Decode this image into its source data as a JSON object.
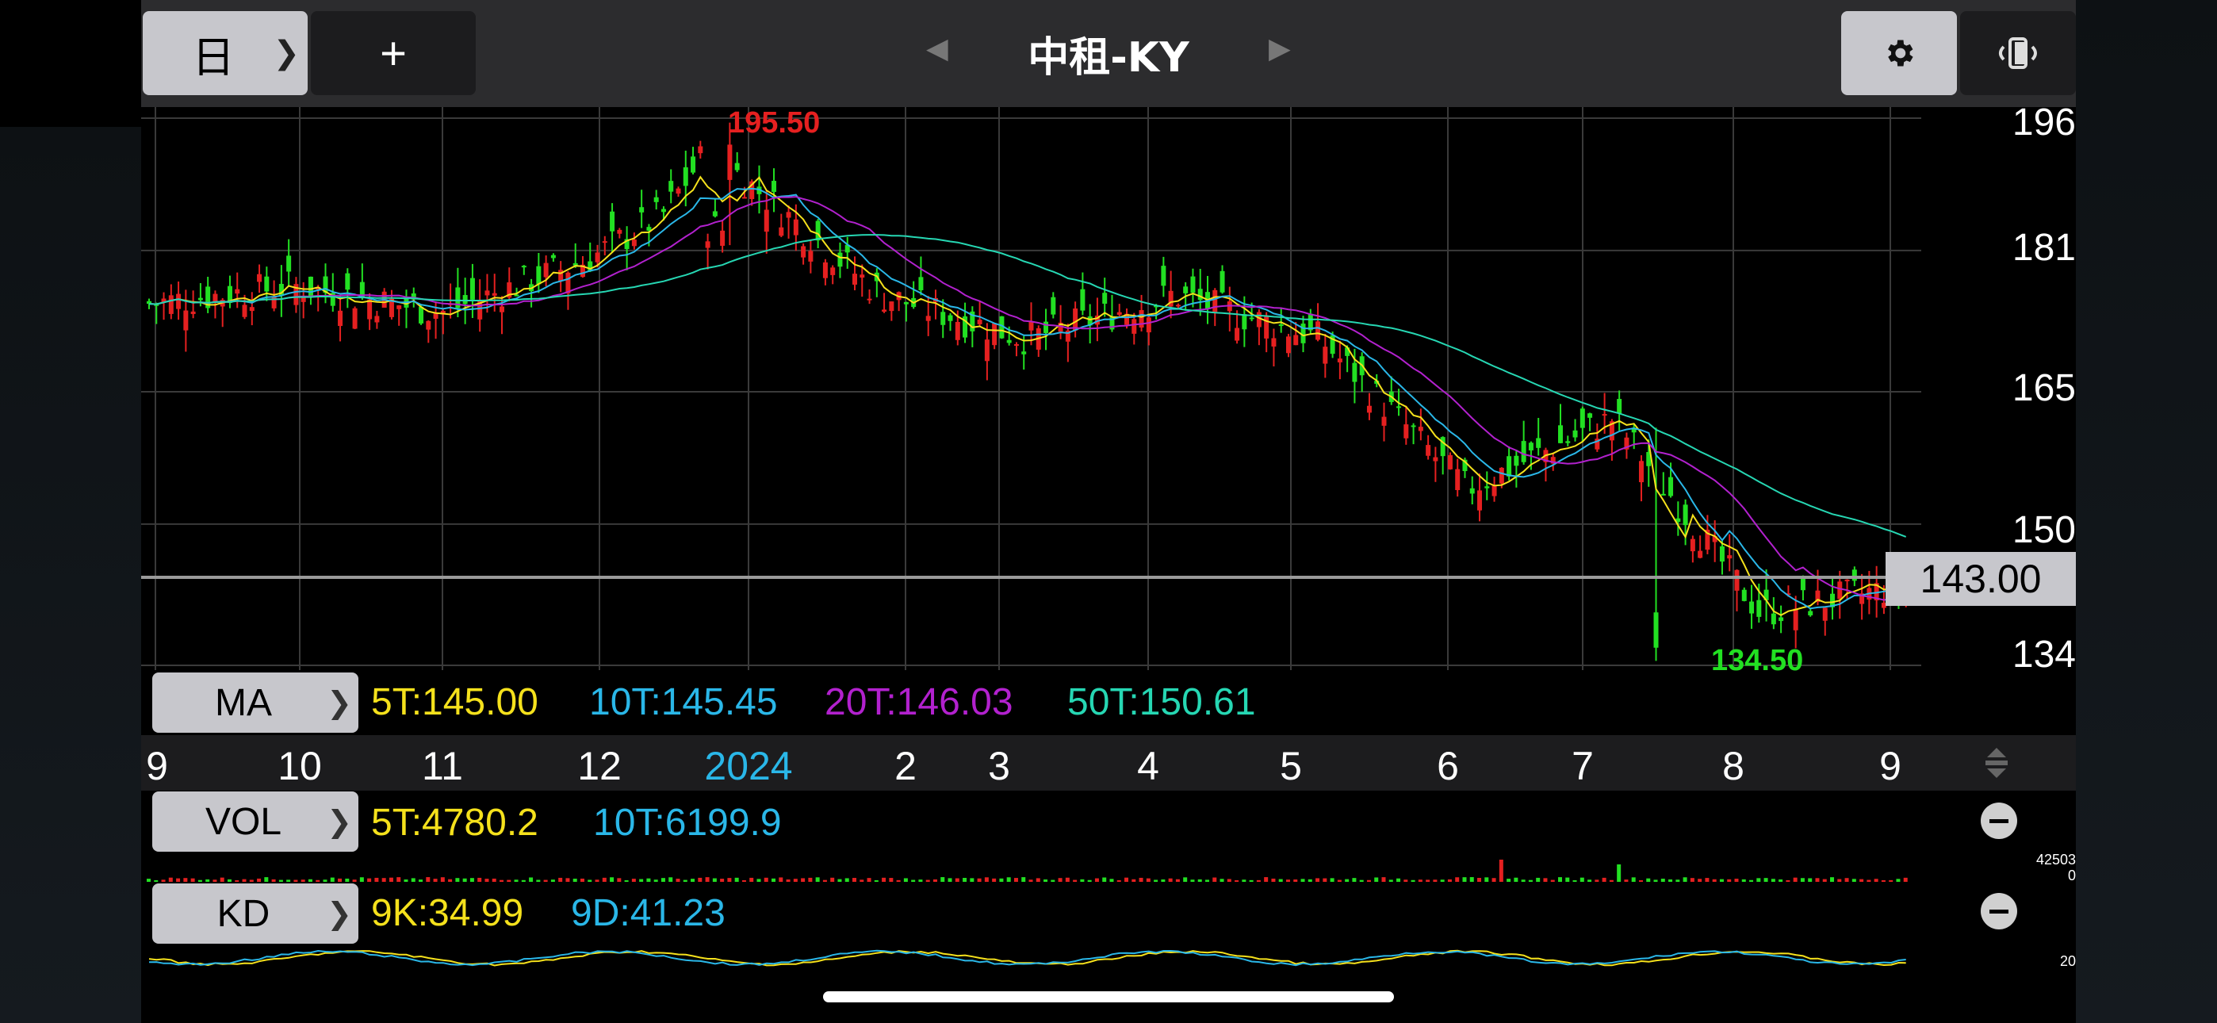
{
  "toolbar": {
    "period_label": "日",
    "add_label": "+",
    "title": "中租-KY",
    "prev_arrow": "◀",
    "next_arrow": "▶",
    "icons": [
      "chevron-right-icon",
      "plus-icon",
      "gear-icon",
      "rotate-screen-icon"
    ]
  },
  "price_axis": {
    "labels": [
      "196",
      "181",
      "165",
      "150",
      "134"
    ],
    "current_price": "143.00"
  },
  "annotations": {
    "high": "195.50",
    "low": "134.50"
  },
  "ma_panel": {
    "label": "MA",
    "items": [
      {
        "text": "5T:145.00",
        "color": "#f5e11c"
      },
      {
        "text": "10T:145.45",
        "color": "#2ab7e8"
      },
      {
        "text": "20T:146.03",
        "color": "#b221ce"
      },
      {
        "text": "50T:150.61",
        "color": "#26d7b3"
      }
    ]
  },
  "months": [
    {
      "label": "9",
      "color": "#ffffff"
    },
    {
      "label": "10",
      "color": "#ffffff"
    },
    {
      "label": "11",
      "color": "#ffffff"
    },
    {
      "label": "12",
      "color": "#ffffff"
    },
    {
      "label": "2024",
      "color": "#2ab7e8"
    },
    {
      "label": "2",
      "color": "#ffffff"
    },
    {
      "label": "3",
      "color": "#ffffff"
    },
    {
      "label": "4",
      "color": "#ffffff"
    },
    {
      "label": "5",
      "color": "#ffffff"
    },
    {
      "label": "6",
      "color": "#ffffff"
    },
    {
      "label": "7",
      "color": "#ffffff"
    },
    {
      "label": "8",
      "color": "#ffffff"
    },
    {
      "label": "9",
      "color": "#ffffff"
    }
  ],
  "vol_panel": {
    "label": "VOL",
    "items": [
      {
        "text": "5T:4780.2",
        "color": "#f5e11c"
      },
      {
        "text": "10T:6199.9",
        "color": "#2ab7e8"
      }
    ],
    "max_label": "42503",
    "min_label": "0"
  },
  "kd_panel": {
    "label": "KD",
    "items": [
      {
        "text": "9K:34.99",
        "color": "#f5e11c"
      },
      {
        "text": "9D:41.23",
        "color": "#2ab7e8"
      }
    ],
    "level_label": "20"
  },
  "colors": {
    "up": "#e52020",
    "down": "#22e022",
    "ma5": "#f5e11c",
    "ma10": "#2ab7e8",
    "ma20": "#b221ce",
    "ma50": "#26d7b3"
  },
  "chart_data": {
    "type": "candlestick",
    "symbol": "中租-KY",
    "period": "日",
    "ylim": [
      134,
      196
    ],
    "y_ticks": [
      196,
      181,
      165,
      150,
      134
    ],
    "x_months": [
      "9",
      "10",
      "11",
      "12",
      "2024",
      "2",
      "3",
      "4",
      "5",
      "6",
      "7",
      "8",
      "9"
    ],
    "period_high": 195.5,
    "period_low": 134.5,
    "last_close": 143.0,
    "approx_close_path": [
      {
        "month": "9",
        "close": 175
      },
      {
        "month": "10",
        "close": 177
      },
      {
        "month": "11",
        "close": 174
      },
      {
        "month": "12",
        "close": 180
      },
      {
        "month": "2024",
        "close": 190
      },
      {
        "month": "2",
        "close": 176
      },
      {
        "month": "3",
        "close": 171
      },
      {
        "month": "4",
        "close": 176
      },
      {
        "month": "5",
        "close": 171
      },
      {
        "month": "6",
        "close": 154
      },
      {
        "month": "7",
        "close": 162
      },
      {
        "month": "8",
        "close": 140
      },
      {
        "month": "9",
        "close": 143
      }
    ],
    "moving_averages": {
      "5T": 145.0,
      "10T": 145.45,
      "20T": 146.03,
      "50T": 150.61
    },
    "volume_averages": {
      "5T": 4780.2,
      "10T": 6199.9
    },
    "volume_max": 42503,
    "kd": {
      "9K": 34.99,
      "9D": 41.23
    }
  }
}
